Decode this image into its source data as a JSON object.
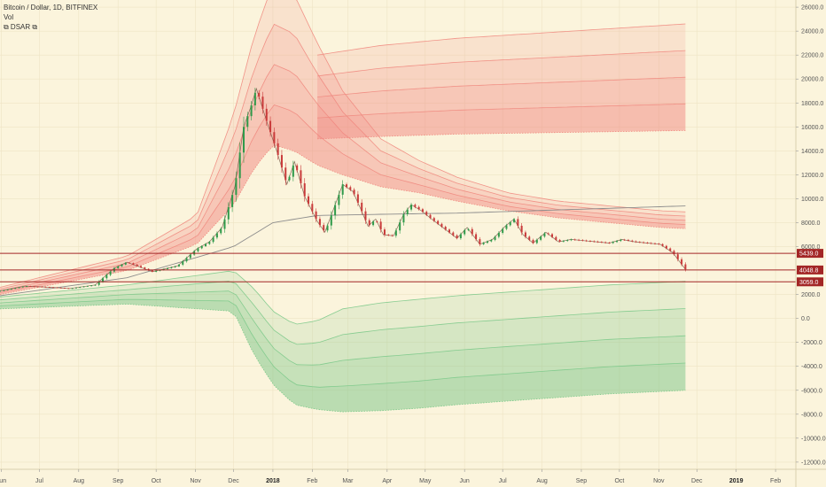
{
  "header": {
    "symbol": "Bitcoin / Dollar, 1D, BITFINEX",
    "indicator_1": "Vol",
    "indicator_2": "⧉ DSAR ⧉"
  },
  "colors": {
    "background": "#fbf4dc",
    "red_band": "#f08a80",
    "green_band": "#7cc98a",
    "candle_up": "#2f9a4a",
    "candle_down": "#c93a3a",
    "level_line": "#a32626",
    "grid": "#eee4c4"
  },
  "chart_data": {
    "type": "line",
    "title": "Bitcoin / Dollar, 1D, BITFINEX",
    "xlabel": "",
    "ylabel": "",
    "ylim": [
      -12600,
      26600
    ],
    "grid": true,
    "x_ticks": [
      {
        "label": "Jun",
        "t": 1
      },
      {
        "label": "Jul",
        "t": 31
      },
      {
        "label": "Aug",
        "t": 62
      },
      {
        "label": "Sep",
        "t": 93
      },
      {
        "label": "Oct",
        "t": 123
      },
      {
        "label": "Nov",
        "t": 154
      },
      {
        "label": "Dec",
        "t": 184
      },
      {
        "label": "2018",
        "t": 215,
        "bold": true
      },
      {
        "label": "Feb",
        "t": 246
      },
      {
        "label": "Mar",
        "t": 274
      },
      {
        "label": "Apr",
        "t": 305
      },
      {
        "label": "May",
        "t": 335
      },
      {
        "label": "Jun",
        "t": 366
      },
      {
        "label": "Jul",
        "t": 396
      },
      {
        "label": "Aug",
        "t": 427
      },
      {
        "label": "Sep",
        "t": 458
      },
      {
        "label": "Oct",
        "t": 488
      },
      {
        "label": "Nov",
        "t": 519
      },
      {
        "label": "Dec",
        "t": 549
      },
      {
        "label": "2019",
        "t": 580,
        "bold": true
      },
      {
        "label": "Feb",
        "t": 611
      }
    ],
    "y_ticks": [
      {
        "label": "26000.0",
        "v": 26000
      },
      {
        "label": "24000.0",
        "v": 24000
      },
      {
        "label": "22000.0",
        "v": 22000
      },
      {
        "label": "20000.0",
        "v": 20000
      },
      {
        "label": "18000.0",
        "v": 18000
      },
      {
        "label": "16000.0",
        "v": 16000
      },
      {
        "label": "14000.0",
        "v": 14000
      },
      {
        "label": "12000.0",
        "v": 12000
      },
      {
        "label": "10000.0",
        "v": 10000
      },
      {
        "label": "8000.0",
        "v": 8000
      },
      {
        "label": "6000.0",
        "v": 6000
      },
      {
        "label": "2000.0",
        "v": 2000
      },
      {
        "label": "0.0",
        "v": 0
      },
      {
        "label": "-2000.0",
        "v": -2000
      },
      {
        "label": "-4000.0",
        "v": -4000
      },
      {
        "label": "-6000.0",
        "v": -6000
      },
      {
        "label": "-8000.0",
        "v": -8000
      },
      {
        "label": "-10000.0",
        "v": -10000
      },
      {
        "label": "-12000.0",
        "v": -12000
      }
    ],
    "horizontal_levels": [
      {
        "label": "5439.0",
        "value": 5439,
        "color": "#a32626"
      },
      {
        "label": "4048.8",
        "value": 4048.8,
        "color": "#a32626"
      },
      {
        "label": "3059.0",
        "value": 3059,
        "color": "#a32626"
      }
    ],
    "price_series": {
      "name": "BTCUSD",
      "x": [
        0,
        20,
        40,
        55,
        75,
        90,
        100,
        120,
        140,
        155,
        165,
        175,
        185,
        192,
        198,
        202,
        210,
        218,
        226,
        232,
        240,
        250,
        256,
        262,
        270,
        278,
        284,
        290,
        296,
        302,
        310,
        318,
        324,
        332,
        340,
        350,
        360,
        368,
        378,
        388,
        398,
        405,
        412,
        420,
        430,
        440,
        450,
        460,
        470,
        480,
        490,
        500,
        510,
        520,
        530,
        540
      ],
      "y": [
        2300,
        2700,
        2600,
        2500,
        2800,
        4200,
        4700,
        3900,
        4400,
        5800,
        6400,
        7600,
        11000,
        16000,
        17800,
        19200,
        16500,
        14000,
        11200,
        13100,
        10200,
        8100,
        7200,
        8900,
        11200,
        10600,
        9200,
        7700,
        8300,
        7000,
        6900,
        8700,
        9500,
        9000,
        8300,
        7500,
        6700,
        7600,
        6200,
        6600,
        7700,
        8300,
        7000,
        6300,
        7200,
        6400,
        6600,
        6500,
        6400,
        6300,
        6600,
        6400,
        6300,
        6200,
        5500,
        4100
      ]
    },
    "red_bands": [
      {
        "x": [
          0,
          100,
          155,
          184,
          200,
          215,
          232,
          250,
          270,
          300,
          330,
          360,
          400,
          440,
          480,
          520,
          540
        ],
        "upper": [
          2600,
          5200,
          8600,
          17000,
          23500,
          28000,
          27000,
          23000,
          19000,
          15000,
          13200,
          11800,
          10500,
          9800,
          9400,
          9000,
          8900
        ],
        "lower": [
          2000,
          4000,
          6200,
          9500,
          12500,
          14500,
          14000,
          12800,
          12000,
          11000,
          10500,
          9800,
          9000,
          8400,
          8000,
          7600,
          7500
        ]
      },
      {
        "x": [
          250,
          300,
          360,
          420,
          480,
          540
        ],
        "upper": [
          22000,
          22800,
          23400,
          23800,
          24200,
          24600
        ],
        "lower": [
          15000,
          15200,
          15400,
          15500,
          15600,
          15700
        ]
      }
    ],
    "green_bands": [
      {
        "x": [
          0,
          100,
          184,
          200,
          215,
          232,
          250,
          270,
          300,
          330,
          360,
          400,
          440,
          480,
          520,
          540
        ],
        "upper": [
          1800,
          2800,
          4000,
          2500,
          600,
          -500,
          -200,
          800,
          1300,
          1600,
          1900,
          2200,
          2500,
          2800,
          3000,
          3100
        ],
        "lower": [
          800,
          1200,
          600,
          -3000,
          -5500,
          -7200,
          -7600,
          -7800,
          -7700,
          -7500,
          -7200,
          -6900,
          -6600,
          -6300,
          -6100,
          -6000
        ]
      }
    ],
    "midline": {
      "x": [
        0,
        100,
        184,
        215,
        250,
        300,
        360,
        420,
        480,
        540
      ],
      "y": [
        1900,
        3400,
        6000,
        8000,
        8600,
        8700,
        8800,
        9000,
        9200,
        9400
      ]
    }
  }
}
